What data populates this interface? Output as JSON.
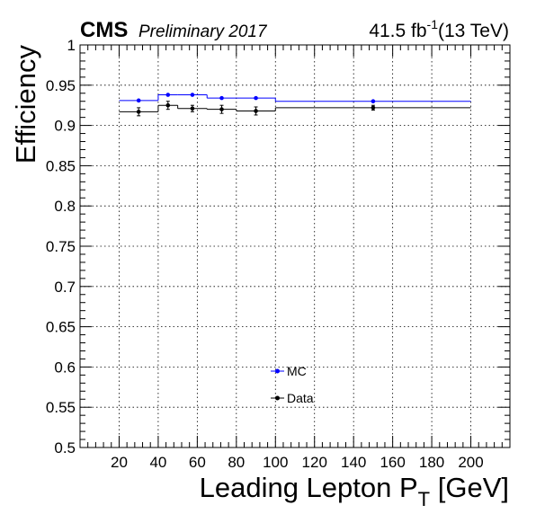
{
  "header": {
    "cms_label": "CMS",
    "preliminary_label": "Preliminary 2017",
    "lumi_value": "41.5 fb",
    "lumi_exponent": "-1",
    "energy_label": "(13 TeV)"
  },
  "chart_data": {
    "type": "scatter",
    "xlabel_main": "Leading Lepton P",
    "xlabel_sub": "T",
    "xlabel_unit": " [GeV]",
    "ylabel": "Efficiency",
    "xlim": [
      0,
      220
    ],
    "ylim": [
      0.5,
      1.0
    ],
    "x_ticks": [
      20,
      40,
      60,
      80,
      100,
      120,
      140,
      160,
      180,
      200
    ],
    "y_ticks": [
      0.5,
      0.55,
      0.6,
      0.65,
      0.7,
      0.75,
      0.8,
      0.85,
      0.9,
      0.95,
      1
    ],
    "y_tick_labels": [
      "0.5",
      "0.55",
      "0.6",
      "0.65",
      "0.7",
      "0.75",
      "0.8",
      "0.85",
      "0.9",
      "0.95",
      "1"
    ],
    "grid": true,
    "legend_position": "lower-middle",
    "series": [
      {
        "name": "MC",
        "color": "#0000ff",
        "x_low": [
          20,
          40,
          50,
          65,
          80,
          100
        ],
        "x_high": [
          40,
          50,
          65,
          80,
          100,
          200
        ],
        "x": [
          30,
          45,
          57.5,
          72.5,
          90,
          150
        ],
        "y": [
          0.931,
          0.938,
          0.938,
          0.934,
          0.934,
          0.93
        ],
        "y_err": [
          0.001,
          0.001,
          0.001,
          0.001,
          0.001,
          0.001
        ]
      },
      {
        "name": "Data",
        "color": "#000000",
        "x_low": [
          20,
          40,
          50,
          65,
          80,
          100
        ],
        "x_high": [
          40,
          50,
          65,
          80,
          100,
          200
        ],
        "x": [
          30,
          45,
          57.5,
          72.5,
          90,
          150
        ],
        "y": [
          0.917,
          0.925,
          0.921,
          0.92,
          0.918,
          0.922
        ],
        "y_err": [
          0.005,
          0.005,
          0.004,
          0.005,
          0.005,
          0.003
        ]
      }
    ]
  }
}
